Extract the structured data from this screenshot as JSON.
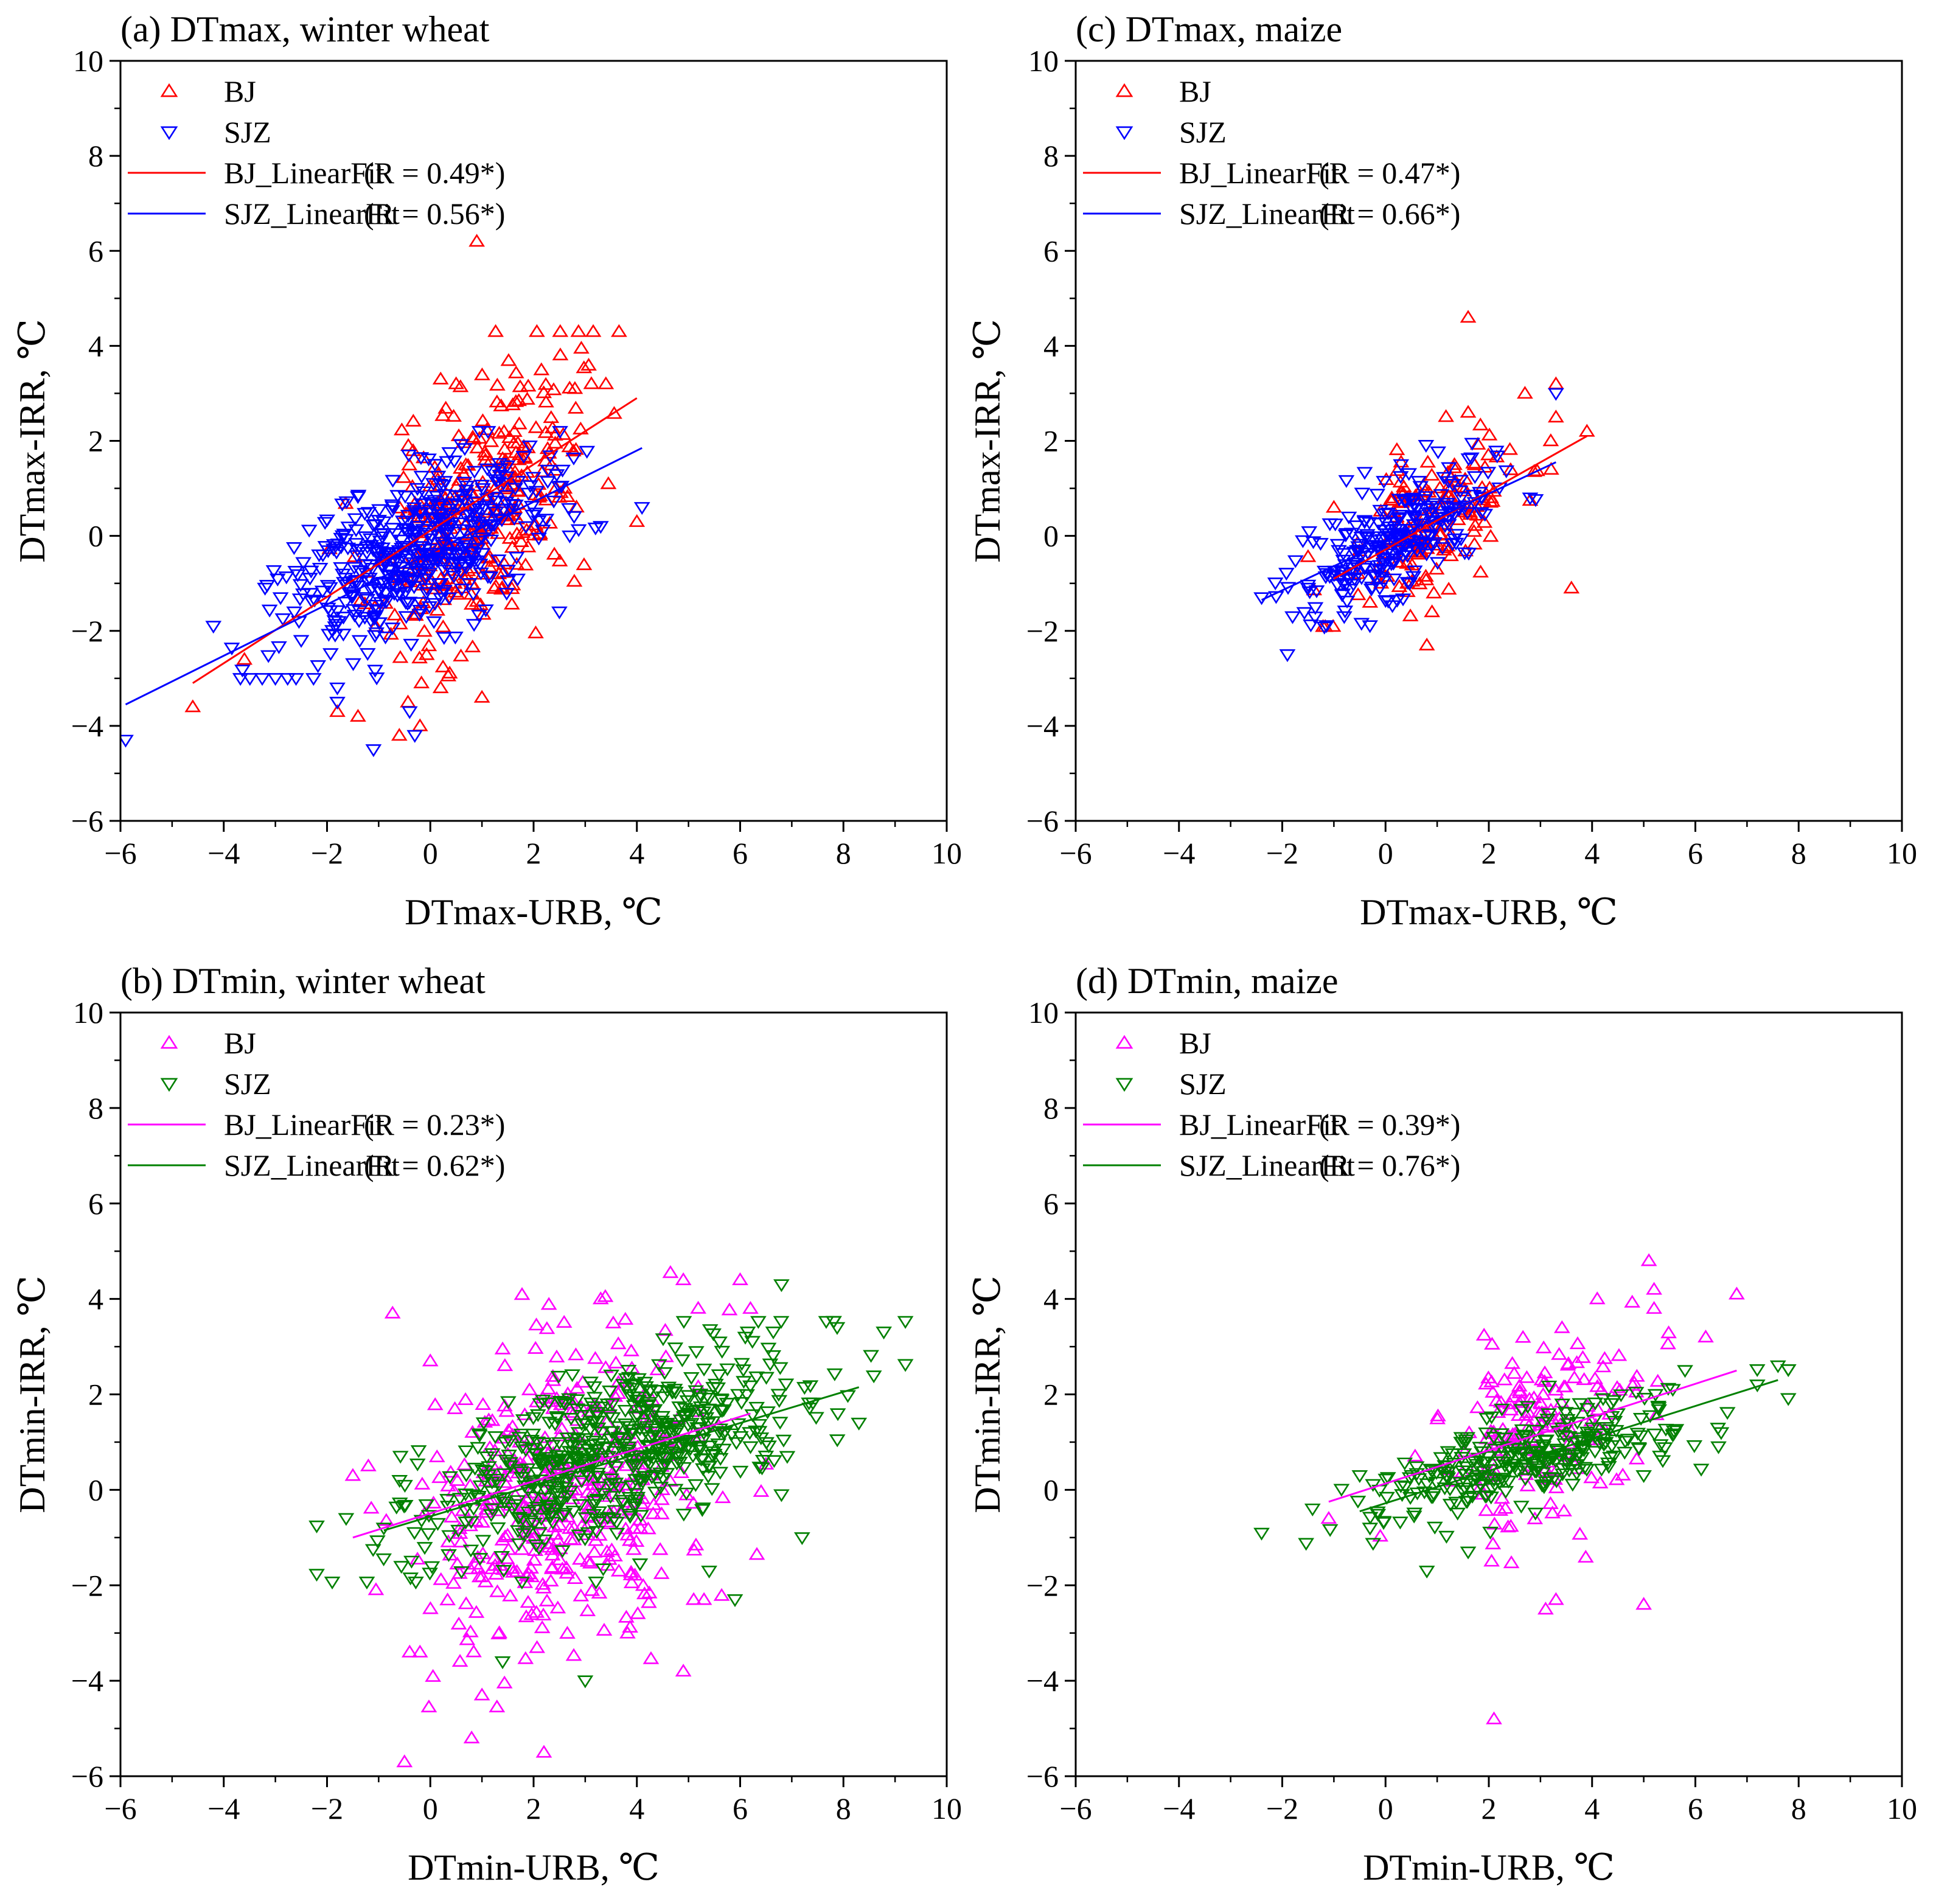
{
  "figure": {
    "background": "#ffffff",
    "axis_color": "#000000"
  },
  "chart_data": [
    {
      "id": "a",
      "type": "scatter",
      "title": "(a) DTmax, winter wheat",
      "xlabel": "DTmax-URB, ℃",
      "ylabel": "DTmax-IRR, ℃",
      "xlim": [
        -6,
        10
      ],
      "ylim": [
        -6,
        10
      ],
      "xticks": [
        -6,
        -4,
        -2,
        0,
        2,
        4,
        6,
        8,
        10
      ],
      "yticks": [
        -6,
        -4,
        -2,
        0,
        2,
        4,
        6,
        8,
        10
      ],
      "xtick_labels": [
        "−6",
        "−4",
        "−2",
        "0",
        "2",
        "4",
        "6",
        "8",
        "10"
      ],
      "ytick_labels": [
        "−6",
        "−4",
        "−2",
        "0",
        "2",
        "4",
        "6",
        "8",
        "10"
      ],
      "grid": false,
      "legend_position": "top-left",
      "series": [
        {
          "name": "BJ",
          "marker": "triangle-up",
          "color": "#ff0000",
          "cloud": {
            "n": 330,
            "cx": 0.9,
            "sx": 0.95,
            "cy": 0.4,
            "sy": 1.5,
            "corr": 0.49,
            "seed": 11
          },
          "points": [
            [
              0.9,
              6.2
            ],
            [
              -4.6,
              -3.6
            ],
            [
              -3.6,
              -2.6
            ],
            [
              0.2,
              3.3
            ],
            [
              0.5,
              3.2
            ],
            [
              3.4,
              3.2
            ],
            [
              2.8,
              3.1
            ],
            [
              4.0,
              0.3
            ],
            [
              -1.8,
              -3.7
            ],
            [
              -1.4,
              -3.8
            ],
            [
              -0.6,
              -4.2
            ],
            [
              -0.2,
              -4.0
            ],
            [
              1.0,
              -3.4
            ],
            [
              0.2,
              -3.2
            ],
            [
              2.6,
              1.0
            ]
          ]
        },
        {
          "name": "SJZ",
          "marker": "triangle-down",
          "color": "#0000ff",
          "cloud": {
            "n": 480,
            "cx": -0.4,
            "sx": 1.2,
            "cy": -0.4,
            "sy": 1.0,
            "corr": 0.56,
            "seed": 23
          },
          "points": [
            [
              -5.9,
              -4.3
            ],
            [
              -4.2,
              -1.9
            ],
            [
              -3.2,
              -1.1
            ],
            [
              -3.0,
              -3.0
            ],
            [
              -2.9,
              -1.3
            ],
            [
              -2.5,
              -2.2
            ],
            [
              -2.6,
              -3.0
            ],
            [
              -1.8,
              -3.5
            ],
            [
              -1.8,
              -3.2
            ],
            [
              -1.1,
              -4.5
            ],
            [
              -0.3,
              -4.2
            ],
            [
              -0.4,
              -3.7
            ],
            [
              3.3,
              0.2
            ],
            [
              4.1,
              0.6
            ],
            [
              2.5,
              -1.6
            ],
            [
              1.9,
              0.9
            ],
            [
              2.7,
              0.0
            ]
          ]
        }
      ],
      "fits": [
        {
          "name": "BJ_LinearFit",
          "label": "(R = 0.49*)",
          "color": "#ff0000",
          "x": [
            -4.6,
            4.0
          ],
          "y": [
            -3.1,
            2.9
          ]
        },
        {
          "name": "SJZ_LinearFit",
          "label": "(R = 0.56*)",
          "color": "#0000ff",
          "x": [
            -5.9,
            4.1
          ],
          "y": [
            -3.55,
            1.85
          ]
        }
      ]
    },
    {
      "id": "c",
      "type": "scatter",
      "title": "(c) DTmax, maize",
      "xlabel": "DTmax-URB, ℃",
      "ylabel": "DTmax-IRR, ℃",
      "xlim": [
        -6,
        10
      ],
      "ylim": [
        -6,
        10
      ],
      "xticks": [
        -6,
        -4,
        -2,
        0,
        2,
        4,
        6,
        8,
        10
      ],
      "yticks": [
        -6,
        -4,
        -2,
        0,
        2,
        4,
        6,
        8,
        10
      ],
      "xtick_labels": [
        "−6",
        "−4",
        "−2",
        "0",
        "2",
        "4",
        "6",
        "8",
        "10"
      ],
      "ytick_labels": [
        "−6",
        "−4",
        "−2",
        "0",
        "2",
        "4",
        "6",
        "8",
        "10"
      ],
      "grid": false,
      "legend_position": "top-left",
      "series": [
        {
          "name": "BJ",
          "marker": "triangle-up",
          "color": "#ff0000",
          "cloud": {
            "n": 150,
            "cx": 0.9,
            "sx": 0.8,
            "cy": 0.3,
            "sy": 0.85,
            "corr": 0.47,
            "seed": 31
          },
          "points": [
            [
              1.6,
              4.6
            ],
            [
              3.3,
              3.2
            ],
            [
              2.7,
              3.0
            ],
            [
              3.3,
              2.5
            ],
            [
              3.9,
              2.2
            ],
            [
              3.2,
              2.0
            ],
            [
              3.6,
              -1.1
            ],
            [
              0.8,
              -2.3
            ],
            [
              0.9,
              -1.6
            ],
            [
              -0.3,
              -1.4
            ],
            [
              1.6,
              2.6
            ],
            [
              -1.0,
              0.6
            ]
          ]
        },
        {
          "name": "SJZ",
          "marker": "triangle-down",
          "color": "#0000ff",
          "cloud": {
            "n": 260,
            "cx": 0.3,
            "sx": 0.9,
            "cy": 0.0,
            "sy": 0.75,
            "corr": 0.66,
            "seed": 37
          },
          "points": [
            [
              -2.4,
              -1.3
            ],
            [
              -1.9,
              -2.5
            ],
            [
              -1.8,
              -1.7
            ],
            [
              -1.6,
              -0.1
            ],
            [
              -1.5,
              -1.1
            ],
            [
              3.3,
              3.0
            ],
            [
              2.8,
              0.8
            ],
            [
              0.3,
              1.5
            ],
            [
              -0.8,
              -1.7
            ]
          ]
        }
      ],
      "fits": [
        {
          "name": "BJ_LinearFit",
          "label": "(R = 0.47*)",
          "color": "#ff0000",
          "x": [
            -1.0,
            3.9
          ],
          "y": [
            -0.9,
            2.1
          ]
        },
        {
          "name": "SJZ_LinearFit",
          "label": "(R = 0.66*)",
          "color": "#0000ff",
          "x": [
            -2.4,
            3.3
          ],
          "y": [
            -1.35,
            1.55
          ]
        }
      ]
    },
    {
      "id": "b",
      "type": "scatter",
      "title": "(b) DTmin, winter wheat",
      "xlabel": "DTmin-URB, ℃",
      "ylabel": "DTmin-IRR, ℃",
      "xlim": [
        -6,
        10
      ],
      "ylim": [
        -6,
        10
      ],
      "xticks": [
        -6,
        -4,
        -2,
        0,
        2,
        4,
        6,
        8,
        10
      ],
      "yticks": [
        -6,
        -4,
        -2,
        0,
        2,
        4,
        6,
        8,
        10
      ],
      "xtick_labels": [
        "−6",
        "−4",
        "−2",
        "0",
        "2",
        "4",
        "6",
        "8",
        "10"
      ],
      "ytick_labels": [
        "−6",
        "−4",
        "−2",
        "0",
        "2",
        "4",
        "6",
        "8",
        "10"
      ],
      "grid": false,
      "legend_position": "top-left",
      "series": [
        {
          "name": "BJ",
          "marker": "triangle-up",
          "color": "#ff00ff",
          "cloud": {
            "n": 420,
            "cx": 2.6,
            "sx": 1.3,
            "cy": 0.0,
            "sy": 1.75,
            "corr": 0.23,
            "seed": 41
          },
          "points": [
            [
              -1.5,
              0.3
            ],
            [
              -1.2,
              0.5
            ],
            [
              -0.5,
              -5.7
            ],
            [
              0.8,
              -5.2
            ],
            [
              2.2,
              -5.5
            ],
            [
              1.0,
              -4.3
            ],
            [
              -0.4,
              -3.4
            ],
            [
              -0.2,
              -3.4
            ],
            [
              4.9,
              4.4
            ],
            [
              6.0,
              4.4
            ],
            [
              6.2,
              3.8
            ],
            [
              4.9,
              -3.8
            ],
            [
              5.3,
              -2.3
            ],
            [
              5.1,
              -2.3
            ],
            [
              0.0,
              2.7
            ],
            [
              3.3,
              4.0
            ]
          ]
        },
        {
          "name": "SJZ",
          "marker": "triangle-down",
          "color": "#008000",
          "cloud": {
            "n": 600,
            "cx": 3.5,
            "sx": 1.9,
            "cy": 0.8,
            "sy": 1.05,
            "corr": 0.62,
            "seed": 53
          },
          "points": [
            [
              6.8,
              4.3
            ],
            [
              8.3,
              1.4
            ],
            [
              7.2,
              -1.0
            ],
            [
              5.4,
              -1.7
            ],
            [
              5.9,
              -2.3
            ],
            [
              3.0,
              -4.0
            ],
            [
              1.4,
              -3.6
            ],
            [
              -0.9,
              -0.8
            ],
            [
              5.6,
              3.1
            ],
            [
              6.1,
              3.2
            ],
            [
              6.8,
              -0.1
            ]
          ]
        }
      ],
      "fits": [
        {
          "name": "BJ_LinearFit",
          "label": "(R = 0.23*)",
          "color": "#ff00ff",
          "x": [
            -1.5,
            6.2
          ],
          "y": [
            -1.0,
            1.6
          ]
        },
        {
          "name": "SJZ_LinearFit",
          "label": "(R = 0.62*)",
          "color": "#008000",
          "x": [
            -0.9,
            8.3
          ],
          "y": [
            -0.85,
            2.15
          ]
        }
      ]
    },
    {
      "id": "d",
      "type": "scatter",
      "title": "(d) DTmin, maize",
      "xlabel": "DTmin-URB, ℃",
      "ylabel": "DTmin-IRR, ℃",
      "xlim": [
        -6,
        10
      ],
      "ylim": [
        -6,
        10
      ],
      "xticks": [
        -6,
        -4,
        -2,
        0,
        2,
        4,
        6,
        8,
        10
      ],
      "yticks": [
        -6,
        -4,
        -2,
        0,
        2,
        4,
        6,
        8,
        10
      ],
      "xtick_labels": [
        "−6",
        "−4",
        "−2",
        "0",
        "2",
        "4",
        "6",
        "8",
        "10"
      ],
      "ytick_labels": [
        "−6",
        "−4",
        "−2",
        "0",
        "2",
        "4",
        "6",
        "8",
        "10"
      ],
      "grid": false,
      "legend_position": "top-left",
      "series": [
        {
          "name": "BJ",
          "marker": "triangle-up",
          "color": "#ff00ff",
          "cloud": {
            "n": 170,
            "cx": 2.8,
            "sx": 1.1,
            "cy": 1.2,
            "sy": 1.05,
            "corr": 0.39,
            "seed": 61
          },
          "points": [
            [
              -1.1,
              -0.6
            ],
            [
              5.1,
              4.8
            ],
            [
              5.2,
              4.2
            ],
            [
              5.2,
              3.8
            ],
            [
              6.8,
              4.1
            ],
            [
              6.2,
              3.2
            ],
            [
              2.1,
              -4.8
            ],
            [
              3.1,
              -2.5
            ],
            [
              3.3,
              -2.3
            ],
            [
              5.0,
              -2.4
            ],
            [
              4.1,
              4.0
            ]
          ]
        },
        {
          "name": "SJZ",
          "marker": "triangle-down",
          "color": "#008000",
          "cloud": {
            "n": 300,
            "cx": 2.7,
            "sx": 1.7,
            "cy": 0.7,
            "sy": 0.7,
            "corr": 0.76,
            "seed": 71
          },
          "points": [
            [
              -0.5,
              0.3
            ],
            [
              -0.3,
              -0.8
            ],
            [
              0.8,
              -1.7
            ],
            [
              1.6,
              -1.3
            ],
            [
              5.0,
              0.3
            ],
            [
              7.6,
              2.6
            ],
            [
              7.2,
              2.2
            ],
            [
              6.5,
              1.2
            ]
          ]
        }
      ],
      "fits": [
        {
          "name": "BJ_LinearFit",
          "label": "(R = 0.39*)",
          "color": "#ff00ff",
          "x": [
            -1.1,
            6.8
          ],
          "y": [
            -0.25,
            2.5
          ]
        },
        {
          "name": "SJZ_LinearFit",
          "label": "(R = 0.76*)",
          "color": "#008000",
          "x": [
            -0.5,
            7.6
          ],
          "y": [
            -0.45,
            2.3
          ]
        }
      ]
    }
  ]
}
